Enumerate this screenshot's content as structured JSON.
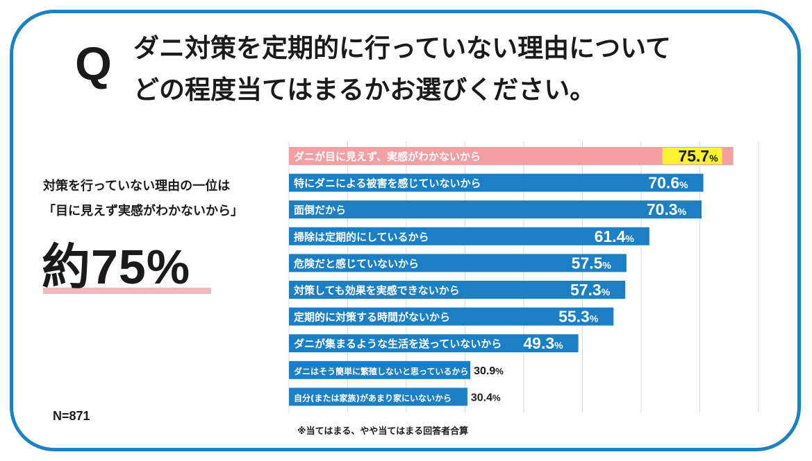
{
  "question": {
    "mark": "Q",
    "line1": "ダニ対策を定期的に行っていない理由について",
    "line2": "どの程度当てはまるかお選びください。"
  },
  "summary": {
    "line1": "対策を行っていない理由の一位は",
    "line2": "「目に見えず実感がわかないから」",
    "headline": "約75%"
  },
  "sample": "N=871",
  "footnote": "※当てはまる、やや当てはまる回答者合算",
  "colors": {
    "frame": "#1a82c4",
    "bar": "#1a7fc4",
    "highlight_bar": "#f4a0a3",
    "highlight_value_bg": "#f8f232"
  },
  "chart_data": {
    "type": "bar",
    "orientation": "horizontal",
    "unit": "%",
    "xlim": [
      0,
      80
    ],
    "grid": true,
    "categories": [
      "ダニが目に見えず、実感がわかないから",
      "特にダニによる被害を感じていないから",
      "面倒だから",
      "掃除は定期的にしているから",
      "危険だと感じていないから",
      "対策しても効果を実感できないから",
      "定期的に対策する時間がないから",
      "ダニが集まるような生活を送っていないから",
      "ダニはそう簡単に繁殖しないと思っているから",
      "自分(または家族)があまり家にいないから"
    ],
    "values": [
      75.7,
      70.6,
      70.3,
      61.4,
      57.5,
      57.3,
      55.3,
      49.3,
      30.9,
      30.4
    ],
    "value_labels": [
      "75.7",
      "70.6",
      "70.3",
      "61.4",
      "57.5",
      "57.3",
      "55.3",
      "49.3",
      "30.9",
      "30.4"
    ],
    "highlighted_index": 0
  }
}
